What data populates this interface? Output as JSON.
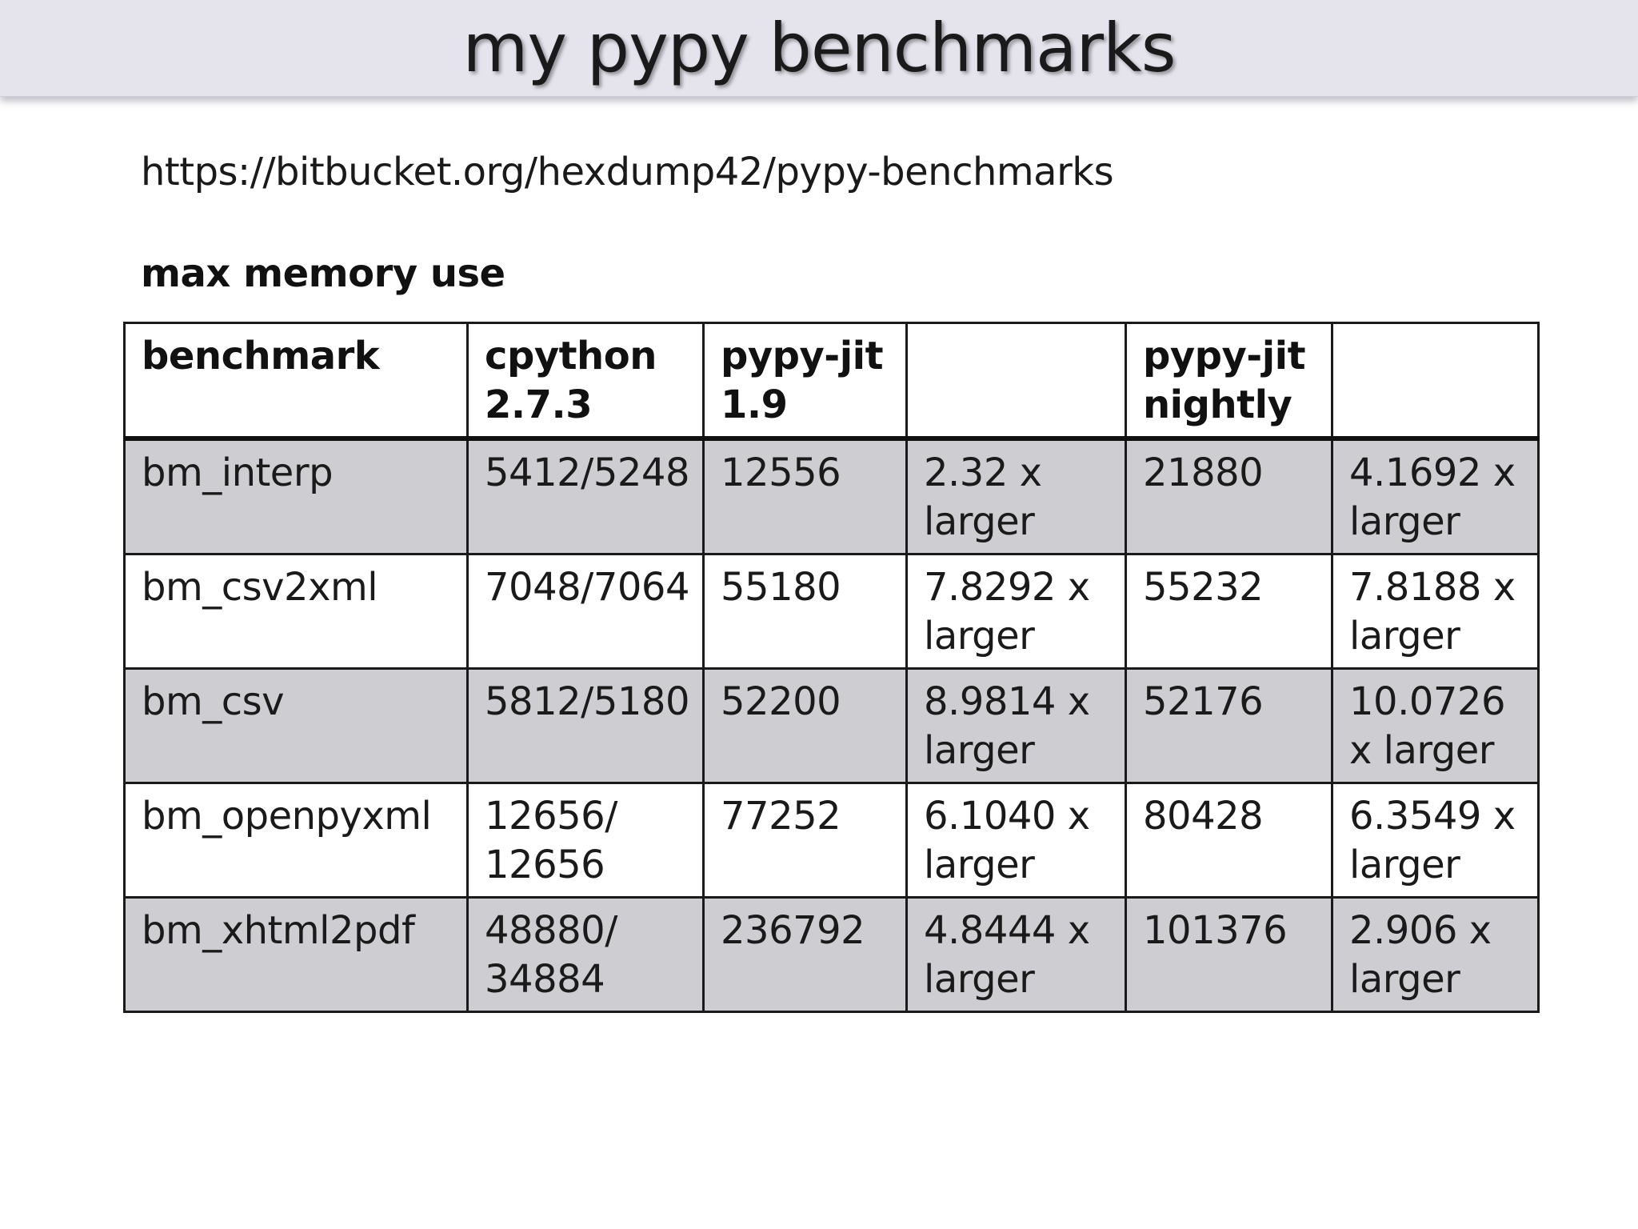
{
  "slide": {
    "title": "my pypy benchmarks",
    "url": "https://bitbucket.org/hexdump42/pypy-benchmarks",
    "subtitle": "max memory use"
  },
  "table": {
    "headers": [
      "benchmark",
      "cpython 2.7.3",
      "pypy-jit 1.9",
      "",
      "pypy-jit nightly",
      ""
    ],
    "rows": [
      [
        "bm_interp",
        "5412/5248",
        "12556",
        "2.32 x larger",
        "21880",
        "4.1692 x larger"
      ],
      [
        "bm_csv2xml",
        "7048/7064",
        "55180",
        "7.8292 x larger",
        "55232",
        "7.8188 x larger"
      ],
      [
        "bm_csv",
        "5812/5180",
        "52200",
        "8.9814 x larger",
        "52176",
        "10.0726 x larger"
      ],
      [
        "bm_openpyxml",
        "12656/ 12656",
        "77252",
        "6.1040 x larger",
        "80428",
        "6.3549 x larger"
      ],
      [
        "bm_xhtml2pdf",
        "48880/ 34884",
        "236792",
        "4.8444 x larger",
        "101376",
        "2.906 x larger"
      ]
    ]
  },
  "colors": {
    "title_bar": "#e5e3ec",
    "shaded_row": "#cecdd1",
    "border": "#1a1a1a"
  }
}
